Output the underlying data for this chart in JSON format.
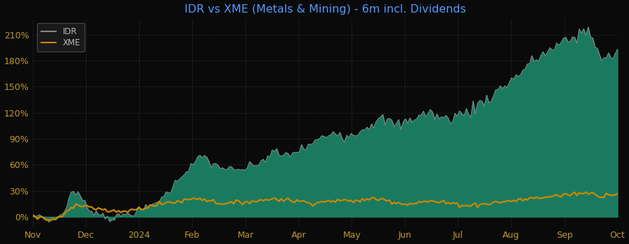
{
  "title": "IDR vs XME (Metals & Mining) - 6m incl. Dividends",
  "title_color": "#5599ff",
  "background_color": "#0a0a0a",
  "plot_bg_color": "#0a0a0a",
  "grid_color": "#2a2a2a",
  "idr_line_color": "#888888",
  "idr_fill_color": "#1a7a60",
  "xme_color": "#cc8800",
  "legend_bg": "#1a1a1a",
  "legend_border": "#444444",
  "legend_text_color": "#bbbbbb",
  "ytick_values": [
    0,
    30,
    60,
    90,
    120,
    150,
    180,
    210
  ],
  "xtick_labels": [
    "Nov",
    "Dec",
    "2024",
    "Feb",
    "Mar",
    "Apr",
    "May",
    "Jun",
    "Jul",
    "Aug",
    "Sep",
    "Oct"
  ],
  "ylim": [
    -12,
    228
  ],
  "num_points": 260,
  "idr_waypoints": [
    0,
    2,
    -3,
    -2,
    5,
    30,
    25,
    10,
    5,
    2,
    -2,
    0,
    3,
    5,
    8,
    12,
    18,
    25,
    35,
    48,
    55,
    65,
    70,
    60,
    58,
    55,
    52,
    55,
    58,
    62,
    68,
    75,
    70,
    72,
    76,
    80,
    85,
    90,
    95,
    100,
    92,
    95,
    100,
    105,
    110,
    112,
    108,
    105,
    110,
    115,
    118,
    120,
    115,
    112,
    116,
    118,
    122,
    128,
    135,
    140,
    148,
    155,
    162,
    170,
    178,
    185,
    190,
    195,
    200,
    205,
    210,
    215,
    205,
    180,
    185,
    190
  ],
  "xme_waypoints": [
    0,
    -1,
    -4,
    -3,
    2,
    12,
    15,
    12,
    10,
    8,
    6,
    5,
    7,
    8,
    10,
    12,
    14,
    16,
    17,
    18,
    20,
    22,
    20,
    18,
    16,
    15,
    16,
    17,
    18,
    18,
    20,
    21,
    20,
    19,
    18,
    17,
    16,
    17,
    18,
    19,
    18,
    18,
    19,
    20,
    21,
    20,
    18,
    16,
    15,
    16,
    17,
    18,
    17,
    16,
    15,
    14,
    13,
    14,
    15,
    16,
    17,
    18,
    19,
    20,
    21,
    22,
    23,
    24,
    25,
    26,
    27,
    28,
    26,
    24,
    26,
    27
  ]
}
